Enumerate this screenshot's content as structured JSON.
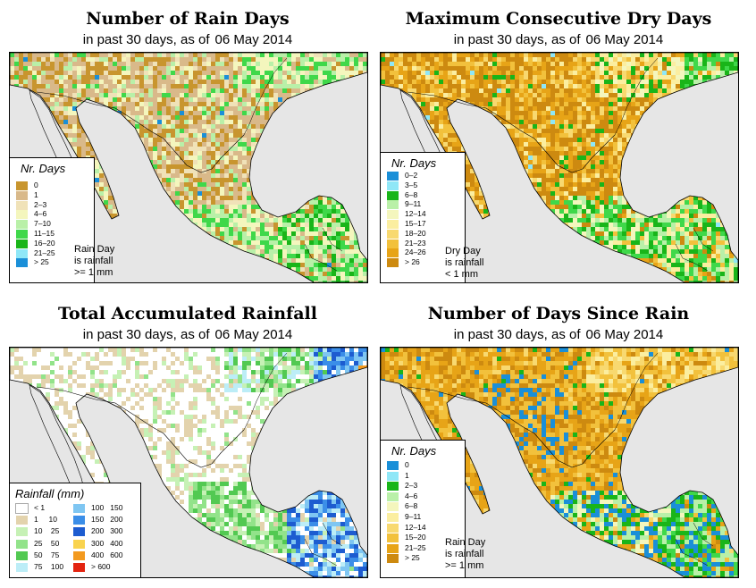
{
  "panels": [
    {
      "title": "Number of Rain Days",
      "subtitle_prefix": "in past 30 days, as of",
      "date": "06 May 2014",
      "legend_title": "Nr. Days",
      "legend_items": [
        {
          "label": "0",
          "color": "#c8952e"
        },
        {
          "label": "1",
          "color": "#d9b98a"
        },
        {
          "label": "2–3",
          "color": "#f0e2b8"
        },
        {
          "label": "4–6",
          "color": "#f4f6bd"
        },
        {
          "label": "7–10",
          "color": "#b9f0a8"
        },
        {
          "label": "11–15",
          "color": "#3fd84a"
        },
        {
          "label": "16–20",
          "color": "#19b519"
        },
        {
          "label": "21–25",
          "color": "#8fe7f7"
        },
        {
          "label": "> 25",
          "color": "#1a8fd8"
        }
      ],
      "note_lines": [
        "Rain Day",
        "is rainfall",
        ">= 1 mm"
      ]
    },
    {
      "title": "Maximum Consecutive Dry Days",
      "subtitle_prefix": "in past 30 days, as of",
      "date": "06 May 2014",
      "legend_title": "Nr. Days",
      "legend_items": [
        {
          "label": "0–2",
          "color": "#1a8fd8"
        },
        {
          "label": "3–5",
          "color": "#8fe7f7"
        },
        {
          "label": "6–8",
          "color": "#19b519"
        },
        {
          "label": "9–11",
          "color": "#b9f0a8"
        },
        {
          "label": "12–14",
          "color": "#f4f6bd"
        },
        {
          "label": "15–17",
          "color": "#fbeea0"
        },
        {
          "label": "18–20",
          "color": "#f8d970"
        },
        {
          "label": "21–23",
          "color": "#f2c13c"
        },
        {
          "label": "24–26",
          "color": "#e7a417"
        },
        {
          "label": "> 26",
          "color": "#cd8a10"
        }
      ],
      "note_lines": [
        "Dry Day",
        "is rainfall",
        "< 1 mm"
      ]
    },
    {
      "title": "Total Accumulated Rainfall",
      "subtitle_prefix": "in past 30 days, as of",
      "date": "06 May 2014",
      "legend_title": "Rainfall (mm)",
      "legend_items": [
        {
          "label": "< 1",
          "color": "#ffffff"
        },
        {
          "label": "1     10",
          "color": "#e3d3ad"
        },
        {
          "label": "10    25",
          "color": "#c6f1b5"
        },
        {
          "label": "25    50",
          "color": "#92e38a"
        },
        {
          "label": "50    75",
          "color": "#52c952"
        },
        {
          "label": "75    100",
          "color": "#bcedf7"
        },
        {
          "label": "100   150",
          "color": "#7fc6f2"
        },
        {
          "label": "150   200",
          "color": "#3b8ee8"
        },
        {
          "label": "200   300",
          "color": "#1d5cd0"
        },
        {
          "label": "300   400",
          "color": "#f9d34e"
        },
        {
          "label": "400   600",
          "color": "#f39a1f"
        },
        {
          "label": "> 600",
          "color": "#e32410"
        }
      ],
      "note_lines": []
    },
    {
      "title": "Number of Days Since Rain",
      "subtitle_prefix": "in past 30 days, as of",
      "date": "06 May 2014",
      "legend_title": "Nr. Days",
      "legend_items": [
        {
          "label": "0",
          "color": "#1a8fd8"
        },
        {
          "label": "1",
          "color": "#8fe7f7"
        },
        {
          "label": "2–3",
          "color": "#19b519"
        },
        {
          "label": "4–6",
          "color": "#b9f0a8"
        },
        {
          "label": "6–8",
          "color": "#f4f6bd"
        },
        {
          "label": "9–11",
          "color": "#fbeea0"
        },
        {
          "label": "12–14",
          "color": "#f8d970"
        },
        {
          "label": "15–20",
          "color": "#f2c13c"
        },
        {
          "label": "21–25",
          "color": "#e7a417"
        },
        {
          "label": "> 25",
          "color": "#cd8a10"
        }
      ],
      "note_lines": [
        "Rain Day",
        "is rainfall",
        ">= 1 mm"
      ]
    }
  ],
  "colors": {
    "ocean": "#e6e6e6",
    "border": "#000000"
  }
}
